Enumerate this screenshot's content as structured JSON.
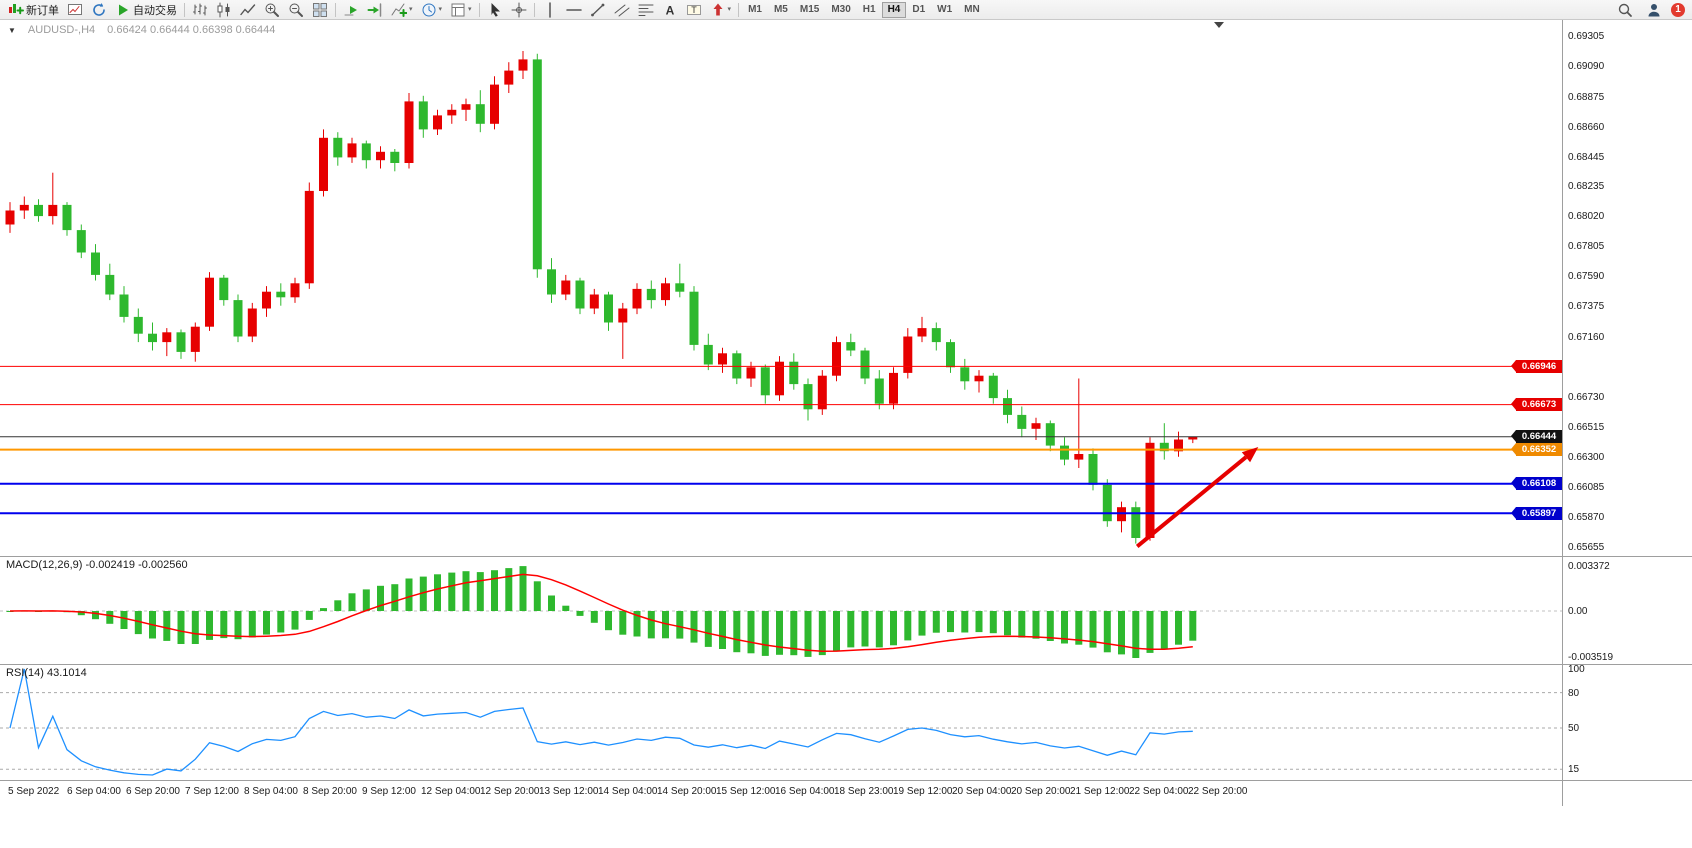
{
  "toolbar": {
    "items": [
      {
        "name": "new-order",
        "icon": "neworder",
        "label": "新订单"
      },
      {
        "name": "open-chart",
        "icon": "newchart"
      },
      {
        "name": "refresh",
        "icon": "refresh"
      },
      {
        "name": "auto-trading",
        "icon": "autotrade",
        "label": "自动交易"
      },
      {
        "sep": true
      },
      {
        "name": "bar-chart",
        "icon": "bars"
      },
      {
        "name": "candle-chart",
        "icon": "candles"
      },
      {
        "name": "line-chart",
        "icon": "linechart"
      },
      {
        "name": "zoom-in",
        "icon": "zoomin"
      },
      {
        "name": "zoom-out",
        "icon": "zoomout"
      },
      {
        "name": "tile-windows",
        "icon": "tile"
      },
      {
        "sep": true
      },
      {
        "name": "auto-scroll",
        "icon": "autoscroll"
      },
      {
        "name": "chart-shift",
        "icon": "chartshift"
      },
      {
        "name": "indicators",
        "icon": "indicators",
        "dropdown": true
      },
      {
        "name": "periods",
        "icon": "clock",
        "dropdown": true
      },
      {
        "name": "templates",
        "icon": "template",
        "dropdown": true
      },
      {
        "sep": true
      },
      {
        "name": "cursor",
        "icon": "cursor"
      },
      {
        "name": "crosshair",
        "icon": "crosshair"
      },
      {
        "sep": true
      },
      {
        "name": "vertical-line",
        "icon": "vline"
      },
      {
        "name": "horizontal-line",
        "icon": "hline"
      },
      {
        "name": "trend-line",
        "icon": "tline"
      },
      {
        "name": "equidistant-channel",
        "icon": "channel"
      },
      {
        "name": "fibonacci",
        "icon": "fibo"
      },
      {
        "name": "text",
        "icon": "textA"
      },
      {
        "name": "text-label",
        "icon": "textT"
      },
      {
        "name": "arrow-objects",
        "icon": "shapes",
        "dropdown": true
      },
      {
        "sep": true
      }
    ],
    "timeframes": [
      "M1",
      "M5",
      "M15",
      "M30",
      "H1",
      "H4",
      "D1",
      "W1",
      "MN"
    ],
    "active_timeframe": "H4",
    "badge_count": "1"
  },
  "chart": {
    "title_symbol": "AUDUSD-,H4",
    "title_ohlc": "0.66424 0.66444 0.66398 0.66444",
    "colors": {
      "up": "#e60000",
      "down": "#2eb82e",
      "macd_histogram": "#2eb82e",
      "macd_signal": "#ff0000",
      "rsi_line": "#1e90ff",
      "background": "#ffffff"
    },
    "price_axis_ticks": [
      "0.69305",
      "0.69090",
      "0.68875",
      "0.68660",
      "0.68445",
      "0.68235",
      "0.68020",
      "0.67805",
      "0.67590",
      "0.67375",
      "0.67160",
      "0.66730",
      "0.66515",
      "0.66300",
      "0.66085",
      "0.65870",
      "0.65655"
    ],
    "time_axis_labels": [
      "5 Sep 2022",
      "6 Sep 04:00",
      "6 Sep 20:00",
      "7 Sep 12:00",
      "8 Sep 04:00",
      "8 Sep 20:00",
      "9 Sep 12:00",
      "12 Sep 04:00",
      "12 Sep 20:00",
      "13 Sep 12:00",
      "14 Sep 04:00",
      "14 Sep 20:00",
      "15 Sep 12:00",
      "16 Sep 04:00",
      "18 Sep 23:00",
      "19 Sep 12:00",
      "20 Sep 04:00",
      "20 Sep 20:00",
      "21 Sep 12:00",
      "22 Sep 04:00",
      "22 Sep 20:00"
    ]
  },
  "chart_data": {
    "type": "candlestick",
    "symbol": "AUDUSD-",
    "timeframe": "H4",
    "ylim": [
      0.6562,
      0.6935
    ],
    "ohlc": [
      [
        0.6796,
        0.6812,
        0.679,
        0.6806
      ],
      [
        0.6806,
        0.6816,
        0.68,
        0.681
      ],
      [
        0.681,
        0.6814,
        0.6798,
        0.6802
      ],
      [
        0.6802,
        0.6833,
        0.6796,
        0.681
      ],
      [
        0.681,
        0.6812,
        0.6788,
        0.6792
      ],
      [
        0.6792,
        0.6796,
        0.6772,
        0.6776
      ],
      [
        0.6776,
        0.6782,
        0.6756,
        0.676
      ],
      [
        0.676,
        0.6768,
        0.6742,
        0.6746
      ],
      [
        0.6746,
        0.6752,
        0.6726,
        0.673
      ],
      [
        0.673,
        0.6736,
        0.6712,
        0.6718
      ],
      [
        0.6718,
        0.6726,
        0.6706,
        0.6712
      ],
      [
        0.6712,
        0.6722,
        0.6702,
        0.6719
      ],
      [
        0.6719,
        0.6721,
        0.67,
        0.6705
      ],
      [
        0.6705,
        0.6726,
        0.6698,
        0.6723
      ],
      [
        0.6723,
        0.6762,
        0.672,
        0.6758
      ],
      [
        0.6758,
        0.676,
        0.6738,
        0.6742
      ],
      [
        0.6742,
        0.6746,
        0.6712,
        0.6716
      ],
      [
        0.6716,
        0.674,
        0.6712,
        0.6736
      ],
      [
        0.6736,
        0.6752,
        0.673,
        0.6748
      ],
      [
        0.6748,
        0.6754,
        0.6738,
        0.6744
      ],
      [
        0.6744,
        0.6758,
        0.674,
        0.6754
      ],
      [
        0.6754,
        0.6826,
        0.675,
        0.682
      ],
      [
        0.682,
        0.6864,
        0.6816,
        0.6858
      ],
      [
        0.6858,
        0.6862,
        0.6838,
        0.6844
      ],
      [
        0.6844,
        0.6858,
        0.684,
        0.6854
      ],
      [
        0.6854,
        0.6856,
        0.6836,
        0.6842
      ],
      [
        0.6842,
        0.6852,
        0.6836,
        0.6848
      ],
      [
        0.6848,
        0.685,
        0.6834,
        0.684
      ],
      [
        0.684,
        0.689,
        0.6836,
        0.6884
      ],
      [
        0.6884,
        0.6888,
        0.6858,
        0.6864
      ],
      [
        0.6864,
        0.6878,
        0.686,
        0.6874
      ],
      [
        0.6874,
        0.6882,
        0.6868,
        0.6878
      ],
      [
        0.6878,
        0.6886,
        0.687,
        0.6882
      ],
      [
        0.6882,
        0.6892,
        0.6862,
        0.6868
      ],
      [
        0.6868,
        0.6902,
        0.6864,
        0.6896
      ],
      [
        0.6896,
        0.6912,
        0.689,
        0.6906
      ],
      [
        0.6906,
        0.692,
        0.69,
        0.6914
      ],
      [
        0.6914,
        0.6918,
        0.6758,
        0.6764
      ],
      [
        0.6764,
        0.6772,
        0.674,
        0.6746
      ],
      [
        0.6746,
        0.676,
        0.6742,
        0.6756
      ],
      [
        0.6756,
        0.6758,
        0.6732,
        0.6736
      ],
      [
        0.6736,
        0.675,
        0.6732,
        0.6746
      ],
      [
        0.6746,
        0.6748,
        0.672,
        0.6726
      ],
      [
        0.6726,
        0.674,
        0.67,
        0.6736
      ],
      [
        0.6736,
        0.6754,
        0.6732,
        0.675
      ],
      [
        0.675,
        0.6756,
        0.6736,
        0.6742
      ],
      [
        0.6742,
        0.6758,
        0.6738,
        0.6754
      ],
      [
        0.6754,
        0.6768,
        0.6744,
        0.6748
      ],
      [
        0.6748,
        0.6752,
        0.6706,
        0.671
      ],
      [
        0.671,
        0.6718,
        0.6692,
        0.6696
      ],
      [
        0.6696,
        0.6708,
        0.669,
        0.6704
      ],
      [
        0.6704,
        0.6706,
        0.6682,
        0.6686
      ],
      [
        0.6686,
        0.6698,
        0.668,
        0.6694
      ],
      [
        0.6694,
        0.6696,
        0.6668,
        0.6674
      ],
      [
        0.6674,
        0.6702,
        0.667,
        0.6698
      ],
      [
        0.6698,
        0.6704,
        0.6678,
        0.6682
      ],
      [
        0.6682,
        0.6686,
        0.6656,
        0.6664
      ],
      [
        0.6664,
        0.6692,
        0.666,
        0.6688
      ],
      [
        0.6688,
        0.6716,
        0.6684,
        0.6712
      ],
      [
        0.6712,
        0.6718,
        0.6702,
        0.6706
      ],
      [
        0.6706,
        0.6708,
        0.6682,
        0.6686
      ],
      [
        0.6686,
        0.6692,
        0.6664,
        0.6668
      ],
      [
        0.6668,
        0.6694,
        0.6664,
        0.669
      ],
      [
        0.669,
        0.6722,
        0.6686,
        0.6716
      ],
      [
        0.6716,
        0.673,
        0.6712,
        0.6722
      ],
      [
        0.6722,
        0.6726,
        0.6706,
        0.6712
      ],
      [
        0.6712,
        0.6714,
        0.669,
        0.6694
      ],
      [
        0.6694,
        0.67,
        0.6678,
        0.6684
      ],
      [
        0.6684,
        0.6692,
        0.6676,
        0.6688
      ],
      [
        0.6688,
        0.669,
        0.6668,
        0.6672
      ],
      [
        0.6672,
        0.6678,
        0.6654,
        0.666
      ],
      [
        0.666,
        0.6666,
        0.6644,
        0.665
      ],
      [
        0.665,
        0.6658,
        0.6642,
        0.6654
      ],
      [
        0.6654,
        0.6656,
        0.6634,
        0.6638
      ],
      [
        0.6638,
        0.6644,
        0.6624,
        0.6628
      ],
      [
        0.6628,
        0.6686,
        0.6622,
        0.6632
      ],
      [
        0.6632,
        0.6636,
        0.6606,
        0.661
      ],
      [
        0.661,
        0.6614,
        0.658,
        0.6584
      ],
      [
        0.6584,
        0.6598,
        0.6576,
        0.6594
      ],
      [
        0.6594,
        0.6598,
        0.6568,
        0.6572
      ],
      [
        0.6572,
        0.6644,
        0.657,
        0.664
      ],
      [
        0.664,
        0.6654,
        0.6628,
        0.6634
      ],
      [
        0.6634,
        0.6648,
        0.663,
        0.66424
      ],
      [
        0.66424,
        0.66444,
        0.66398,
        0.66444
      ]
    ],
    "horizontal_lines": [
      {
        "price": 0.66946,
        "label": "0.66946",
        "color": "#ff0000",
        "box": "#e60000",
        "thickness": 1
      },
      {
        "price": 0.66673,
        "label": "0.66673",
        "color": "#ff0000",
        "box": "#e60000",
        "thickness": 1
      },
      {
        "price": 0.66444,
        "label": "0.66444",
        "color": "#333333",
        "box": "#111111",
        "thickness": 1
      },
      {
        "price": 0.66352,
        "label": "0.66352",
        "color": "#ff9800",
        "box": "#ef8a00",
        "thickness": 2
      },
      {
        "price": 0.66108,
        "label": "0.66108",
        "color": "#0000ee",
        "box": "#0000cc",
        "thickness": 2
      },
      {
        "price": 0.65897,
        "label": "0.65897",
        "color": "#0000ee",
        "box": "#0000cc",
        "thickness": 2
      }
    ],
    "trend_arrow": {
      "from": {
        "index": 79.1,
        "price": 0.6566
      },
      "to": {
        "index": 87.6,
        "price": 0.6637
      },
      "color": "#e60000"
    },
    "indicators": [
      {
        "name": "MACD",
        "params": [
          12,
          26,
          9
        ],
        "title": "MACD(12,26,9) -0.002419 -0.002560",
        "values": [
          -0.002419,
          -0.00256
        ],
        "scale_labels": [
          "0.003372",
          "0.00",
          "-0.003519"
        ]
      },
      {
        "name": "RSI",
        "params": [
          14
        ],
        "title": "RSI(14) 43.1014",
        "value": 43.1014,
        "scale_labels": [
          "100",
          "80",
          "50",
          "15"
        ],
        "levels": [
          80,
          50,
          15
        ]
      }
    ]
  }
}
